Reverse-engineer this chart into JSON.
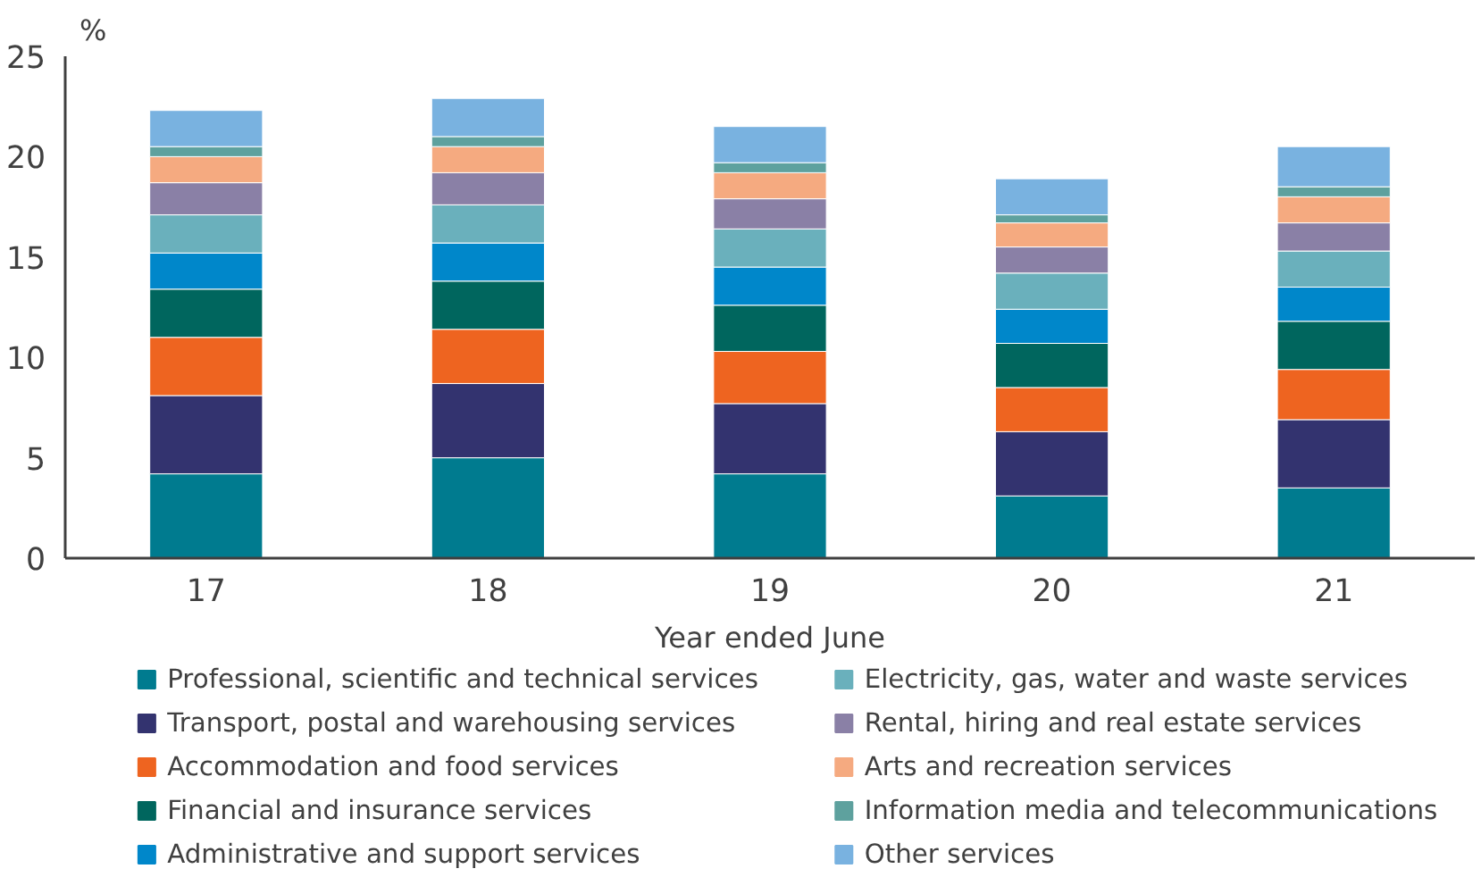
{
  "chart_data": {
    "type": "bar",
    "stacked": true,
    "ylabel": "%",
    "xlabel": "Year ended June",
    "categories": [
      "17",
      "18",
      "19",
      "20",
      "21"
    ],
    "ylim": [
      0,
      25
    ],
    "yticks": [
      0,
      5,
      10,
      15,
      20,
      25
    ],
    "grid": false,
    "legend": "bottom",
    "series": [
      {
        "name": "Professional, scientific and technical services",
        "color": "#007b8f",
        "values": [
          4.2,
          5.0,
          4.2,
          3.1,
          3.5
        ]
      },
      {
        "name": "Transport, postal and warehousing services",
        "color": "#33336f",
        "values": [
          3.9,
          3.7,
          3.5,
          3.2,
          3.4
        ]
      },
      {
        "name": "Accommodation and food services",
        "color": "#ee6420",
        "values": [
          2.9,
          2.7,
          2.6,
          2.2,
          2.5
        ]
      },
      {
        "name": "Financial and insurance services",
        "color": "#00665e",
        "values": [
          2.4,
          2.4,
          2.3,
          2.2,
          2.4
        ]
      },
      {
        "name": "Administrative and support services",
        "color": "#0087ca",
        "values": [
          1.8,
          1.9,
          1.9,
          1.7,
          1.7
        ]
      },
      {
        "name": "Electricity, gas, water and waste services",
        "color": "#6ab0bc",
        "values": [
          1.9,
          1.9,
          1.9,
          1.8,
          1.8
        ]
      },
      {
        "name": "Rental, hiring and real estate services",
        "color": "#8a80a6",
        "values": [
          1.6,
          1.6,
          1.5,
          1.3,
          1.4
        ]
      },
      {
        "name": "Arts and recreation services",
        "color": "#f5aa80",
        "values": [
          1.3,
          1.3,
          1.3,
          1.2,
          1.3
        ]
      },
      {
        "name": "Information media and telecommunications",
        "color": "#5ea19e",
        "values": [
          0.5,
          0.5,
          0.5,
          0.4,
          0.5
        ]
      },
      {
        "name": "Other services",
        "color": "#79b2e0",
        "values": [
          1.8,
          1.9,
          1.8,
          1.8,
          2.0
        ]
      }
    ]
  }
}
